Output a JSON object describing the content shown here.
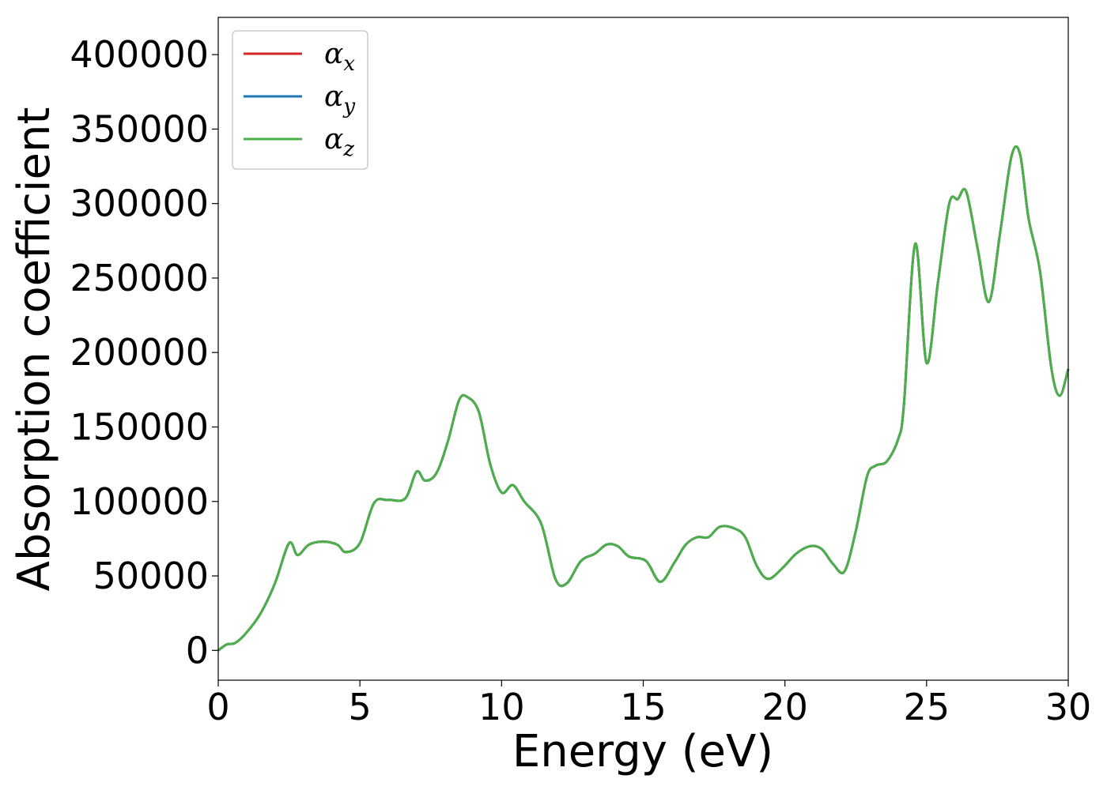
{
  "chart_data": {
    "type": "line",
    "title": "",
    "xlabel": "Energy (eV)",
    "ylabel": "Absorption coefficient",
    "xlim": [
      0,
      30
    ],
    "ylim": [
      -20000,
      425000
    ],
    "xticks": [
      0,
      5,
      10,
      15,
      20,
      25,
      30
    ],
    "xtick_labels": [
      "0",
      "5",
      "10",
      "15",
      "20",
      "25",
      "30"
    ],
    "yticks": [
      0,
      50000,
      100000,
      150000,
      200000,
      250000,
      300000,
      350000,
      400000
    ],
    "ytick_labels": [
      "0",
      "50000",
      "100000",
      "150000",
      "200000",
      "250000",
      "300000",
      "350000",
      "400000"
    ],
    "grid": false,
    "legend_position": "top-left",
    "legend": [
      {
        "symbol": "α",
        "sub": "x",
        "color": "#d62728"
      },
      {
        "symbol": "α",
        "sub": "y",
        "color": "#1f77b4"
      },
      {
        "symbol": "α",
        "sub": "z",
        "color": "#4daf4a"
      }
    ],
    "x": [
      0,
      0.3,
      0.6,
      1.0,
      1.5,
      2.0,
      2.5,
      2.8,
      3.2,
      3.7,
      4.2,
      4.5,
      5.0,
      5.5,
      6.0,
      6.6,
      7.0,
      7.3,
      7.7,
      8.1,
      8.5,
      8.8,
      9.2,
      9.6,
      10.0,
      10.4,
      10.8,
      11.4,
      11.9,
      12.3,
      12.8,
      13.3,
      13.7,
      14.1,
      14.5,
      15.1,
      15.6,
      16.1,
      16.5,
      16.9,
      17.3,
      17.7,
      18.2,
      18.6,
      19.0,
      19.4,
      19.9,
      20.4,
      20.9,
      21.3,
      21.7,
      22.1,
      22.5,
      22.9,
      23.2,
      23.6,
      24.0,
      24.2,
      24.6,
      25.0,
      25.4,
      25.8,
      26.1,
      26.4,
      26.8,
      27.2,
      27.6,
      28.0,
      28.3,
      28.6,
      29.0,
      29.4,
      29.7,
      30.0
    ],
    "series": [
      {
        "name": "α_x",
        "color": "#d62728",
        "values": [
          0,
          4000,
          5000,
          12000,
          25000,
          45000,
          72000,
          64000,
          71000,
          73000,
          71000,
          66000,
          72000,
          99000,
          101000,
          102000,
          120000,
          114000,
          119000,
          140000,
          168000,
          170000,
          160000,
          125000,
          106000,
          111000,
          100000,
          85000,
          48000,
          45000,
          60000,
          65000,
          71000,
          70000,
          63000,
          60000,
          46000,
          59000,
          71000,
          76000,
          76000,
          83000,
          82000,
          76000,
          57000,
          48000,
          55000,
          65000,
          70000,
          68000,
          58000,
          53000,
          80000,
          117000,
          124000,
          127000,
          142000,
          165000,
          273000,
          193000,
          247000,
          300000,
          303000,
          308000,
          270000,
          234000,
          281000,
          332000,
          333000,
          290000,
          255000,
          190000,
          171000,
          189000
        ]
      },
      {
        "name": "α_y",
        "color": "#1f77b4",
        "values": [
          0,
          4000,
          5000,
          12000,
          25000,
          45000,
          72000,
          64000,
          71000,
          73000,
          71000,
          66000,
          72000,
          99000,
          101000,
          102000,
          120000,
          114000,
          119000,
          140000,
          168000,
          170000,
          160000,
          125000,
          106000,
          111000,
          100000,
          85000,
          48000,
          45000,
          60000,
          65000,
          71000,
          70000,
          63000,
          60000,
          46000,
          59000,
          71000,
          76000,
          76000,
          83000,
          82000,
          76000,
          57000,
          48000,
          55000,
          65000,
          70000,
          68000,
          58000,
          53000,
          80000,
          117000,
          124000,
          127000,
          142000,
          165000,
          273000,
          193000,
          247000,
          300000,
          303000,
          308000,
          270000,
          234000,
          281000,
          332000,
          333000,
          290000,
          255000,
          190000,
          171000,
          189000
        ]
      },
      {
        "name": "α_z",
        "color": "#4daf4a",
        "values": [
          0,
          4000,
          5000,
          12000,
          25000,
          45000,
          72000,
          64000,
          71000,
          73000,
          71000,
          66000,
          72000,
          99000,
          101000,
          102000,
          120000,
          114000,
          119000,
          140000,
          168000,
          170000,
          160000,
          125000,
          106000,
          111000,
          100000,
          85000,
          48000,
          45000,
          60000,
          65000,
          71000,
          70000,
          63000,
          60000,
          46000,
          59000,
          71000,
          76000,
          76000,
          83000,
          82000,
          76000,
          57000,
          48000,
          55000,
          65000,
          70000,
          68000,
          58000,
          53000,
          80000,
          117000,
          124000,
          127000,
          142000,
          165000,
          273000,
          193000,
          247000,
          300000,
          303000,
          308000,
          270000,
          234000,
          281000,
          332000,
          333000,
          290000,
          255000,
          190000,
          171000,
          189000
        ]
      }
    ]
  }
}
